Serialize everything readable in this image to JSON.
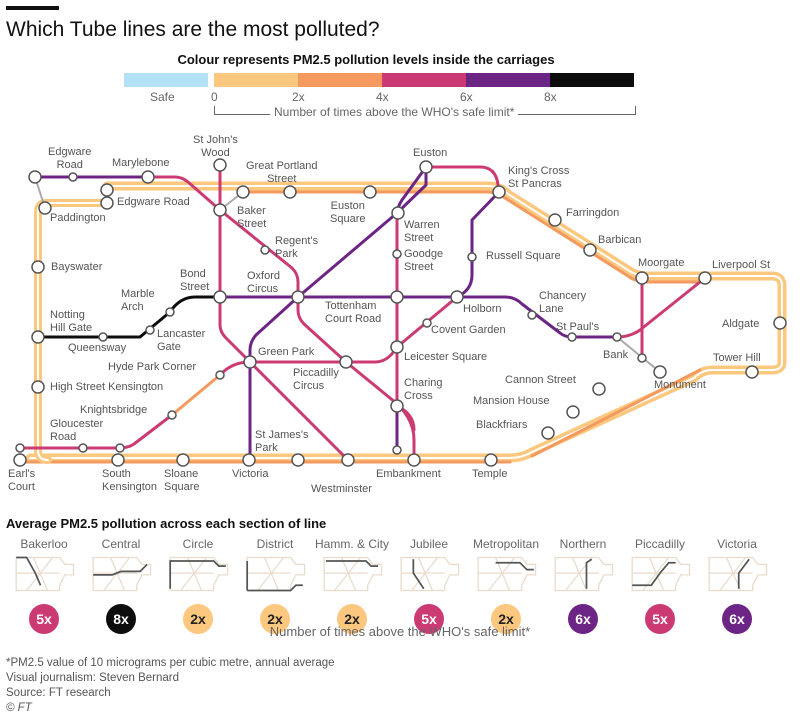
{
  "title": "Which Tube lines are the most polluted?",
  "legend": {
    "title": "Colour represents PM2.5 pollution levels inside the carriages",
    "safe_label": "Safe",
    "ticks": [
      "0",
      "2x",
      "4x",
      "6x",
      "8x"
    ],
    "axis_label": "Number of times above the WHO's safe limit*",
    "colors": {
      "safe": "#b4e2f4",
      "0-2x": "#fcc77e",
      "2-4x": "#f59a5f",
      "4-6x": "#cc3a74",
      "6-8x": "#6c2585",
      "8x+": "#0d0d0d"
    }
  },
  "map": {
    "stations": [
      "Edgware\nRoad",
      "Marylebone",
      "St John's\nWood",
      "Great Portland\nStreet",
      "Euston",
      "King's Cross\nSt Pancras",
      "Edgware Road",
      "Paddington",
      "Baker\nStreet",
      "Euston\nSquare",
      "Warren\nStreet",
      "Farringdon",
      "Regent's\nPark",
      "Goodge\nStreet",
      "Russell Square",
      "Barbican",
      "Moorgate",
      "Liverpool St",
      "Bayswater",
      "Marble\nArch",
      "Bond\nStreet",
      "Oxford\nCircus",
      "Tottenham\nCourt Road",
      "Holborn",
      "Chancery\nLane",
      "Notting\nHill Gate",
      "Queensway",
      "Lancaster\nGate",
      "Covent Garden",
      "St Paul's",
      "Aldgate",
      "Green Park",
      "Leicester Square",
      "Bank",
      "Hyde Park Corner",
      "Piccadilly\nCircus",
      "Tower Hill",
      "High Street Kensington",
      "Charing\nCross",
      "Cannon Street",
      "Monument",
      "Mansion House",
      "Knightsbridge",
      "Gloucester\nRoad",
      "Blackfriars",
      "St James's\nPark",
      "Earl's\nCourt",
      "South\nKensington",
      "Sloane\nSquare",
      "Victoria",
      "Westminster",
      "Embankment",
      "Temple"
    ]
  },
  "section": {
    "title": "Average PM2.5 pollution across each section of line",
    "lines": [
      {
        "name": "Bakerloo",
        "value": "5x",
        "level": "4-6x"
      },
      {
        "name": "Central",
        "value": "8x",
        "level": "8x+"
      },
      {
        "name": "Circle",
        "value": "2x",
        "level": "0-2x"
      },
      {
        "name": "District",
        "value": "2x",
        "level": "0-2x"
      },
      {
        "name": "Hamm. & City",
        "value": "2x",
        "level": "0-2x"
      },
      {
        "name": "Jubilee",
        "value": "5x",
        "level": "4-6x"
      },
      {
        "name": "Metropolitan",
        "value": "2x",
        "level": "0-2x"
      },
      {
        "name": "Northern",
        "value": "6x",
        "level": "6-8x"
      },
      {
        "name": "Piccadilly",
        "value": "5x",
        "level": "4-6x"
      },
      {
        "name": "Victoria",
        "value": "6x",
        "level": "6-8x"
      }
    ],
    "axis_label": "Number of times above the WHO's safe limit*"
  },
  "footer": {
    "note": "*PM2.5 value of 10 micrograms per cubic metre, annual average",
    "credit": "Visual journalism: Steven Bernard",
    "source": "Source: FT research",
    "copyright": "© FT"
  }
}
